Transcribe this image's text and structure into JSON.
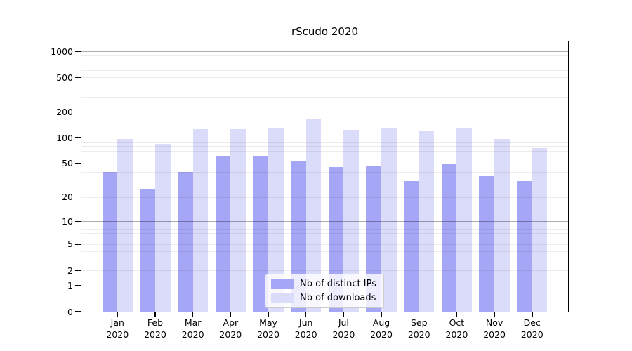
{
  "chart_data": {
    "type": "bar",
    "title": "rScudo 2020",
    "categories": [
      "Jan 2020",
      "Feb 2020",
      "Mar 2020",
      "Apr 2020",
      "May 2020",
      "Jun 2020",
      "Jul 2020",
      "Aug 2020",
      "Sep 2020",
      "Oct 2020",
      "Nov 2020",
      "Dec 2020"
    ],
    "series": [
      {
        "name": "Nb of distinct IPs",
        "color": "#a6a6f7",
        "values": [
          40,
          25,
          40,
          62,
          61,
          54,
          45,
          47,
          31,
          50,
          36,
          31
        ]
      },
      {
        "name": "Nb of downloads",
        "color": "#dbdbfa",
        "values": [
          97,
          85,
          126,
          125,
          129,
          163,
          123,
          129,
          118,
          129,
          97,
          76
        ]
      }
    ],
    "yscale": "log1p",
    "ylim": [
      0,
      1300
    ],
    "yticks": [
      1000,
      500,
      200,
      100,
      50,
      20,
      10,
      5,
      2,
      1,
      0
    ],
    "grid": true,
    "legend_position": "lower center",
    "colors": {
      "axis": "#000000",
      "grid_major": "rgba(0,0,0,0.32)",
      "grid_minor": "rgba(0,0,0,0.07)",
      "legend_border": "#cccccc"
    }
  }
}
